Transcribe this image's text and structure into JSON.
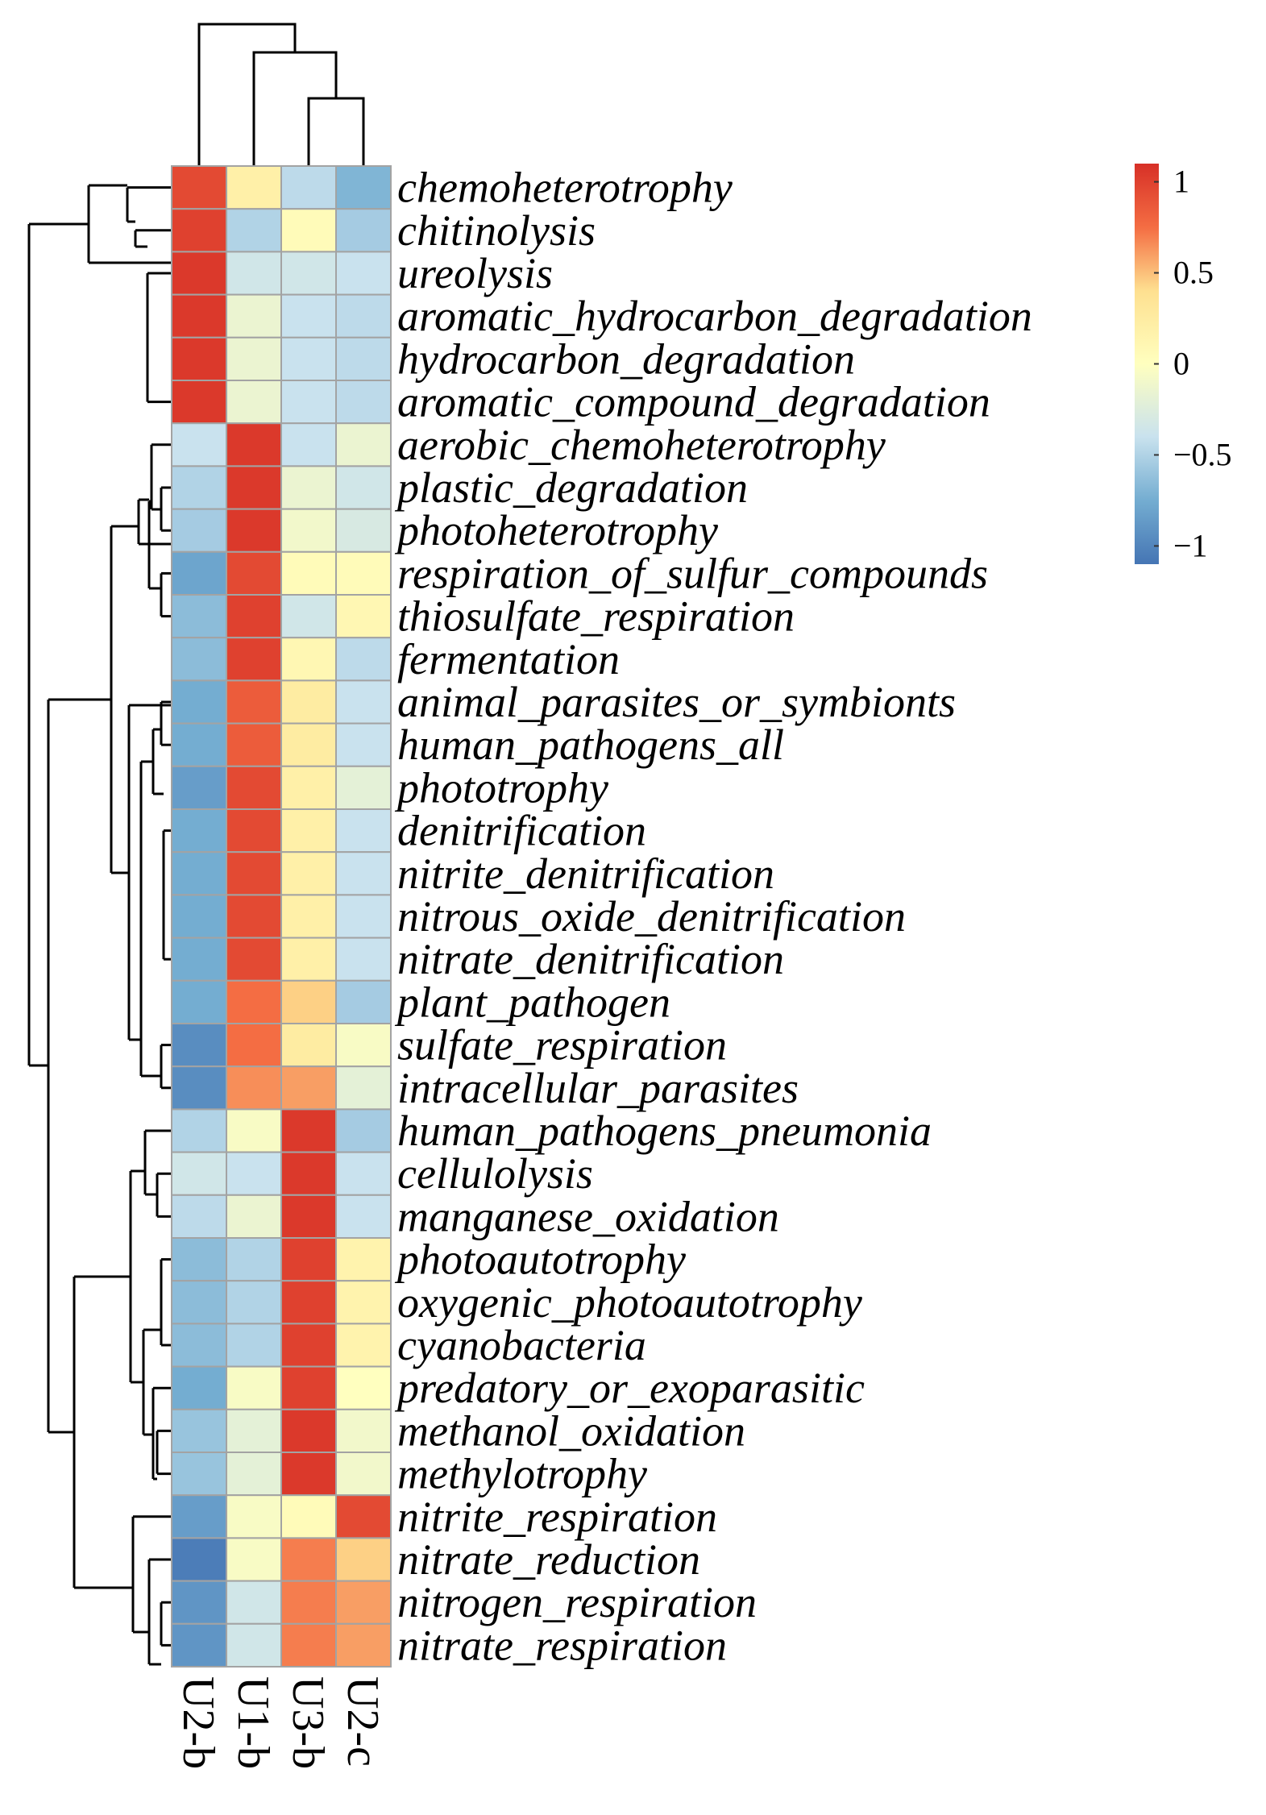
{
  "chart_data": {
    "type": "heatmap",
    "title": "",
    "columns": [
      "U2-b",
      "U1-b",
      "U3-b",
      "U2-c"
    ],
    "rows": [
      {
        "label": "chemoheterotrophy",
        "values": [
          0.95,
          0.2,
          -0.45,
          -0.7
        ]
      },
      {
        "label": "chitinolysis",
        "values": [
          1.0,
          -0.5,
          0.05,
          -0.55
        ]
      },
      {
        "label": "ureolysis",
        "values": [
          1.05,
          -0.35,
          -0.35,
          -0.4
        ]
      },
      {
        "label": "aromatic_hydrocarbon_degradation",
        "values": [
          1.05,
          -0.15,
          -0.4,
          -0.45
        ]
      },
      {
        "label": "hydrocarbon_degradation",
        "values": [
          1.05,
          -0.15,
          -0.4,
          -0.45
        ]
      },
      {
        "label": "aromatic_compound_degradation",
        "values": [
          1.05,
          -0.15,
          -0.4,
          -0.45
        ]
      },
      {
        "label": "aerobic_chemoheterotrophy",
        "values": [
          -0.4,
          1.05,
          -0.4,
          -0.15
        ]
      },
      {
        "label": "plastic_degradation",
        "values": [
          -0.5,
          1.05,
          -0.15,
          -0.35
        ]
      },
      {
        "label": "photoheterotrophy",
        "values": [
          -0.55,
          1.05,
          -0.1,
          -0.3
        ]
      },
      {
        "label": "respiration_of_sulfur_compounds",
        "values": [
          -0.8,
          0.95,
          0.05,
          0.05
        ]
      },
      {
        "label": "thiosulfate_respiration",
        "values": [
          -0.65,
          1.0,
          -0.35,
          0.1
        ]
      },
      {
        "label": "fermentation",
        "values": [
          -0.65,
          1.0,
          0.1,
          -0.45
        ]
      },
      {
        "label": "animal_parasites_or_symbionts",
        "values": [
          -0.75,
          0.85,
          0.25,
          -0.4
        ]
      },
      {
        "label": "human_pathogens_all",
        "values": [
          -0.75,
          0.85,
          0.25,
          -0.4
        ]
      },
      {
        "label": "phototrophy",
        "values": [
          -0.85,
          0.95,
          0.2,
          -0.2
        ]
      },
      {
        "label": "denitrification",
        "values": [
          -0.75,
          0.95,
          0.2,
          -0.4
        ]
      },
      {
        "label": "nitrite_denitrification",
        "values": [
          -0.75,
          0.95,
          0.2,
          -0.4
        ]
      },
      {
        "label": "nitrous_oxide_denitrification",
        "values": [
          -0.75,
          0.95,
          0.2,
          -0.4
        ]
      },
      {
        "label": "nitrate_denitrification",
        "values": [
          -0.75,
          0.95,
          0.2,
          -0.4
        ]
      },
      {
        "label": "plant_pathogen",
        "values": [
          -0.75,
          0.75,
          0.45,
          -0.55
        ]
      },
      {
        "label": "sulfate_respiration",
        "values": [
          -0.95,
          0.75,
          0.25,
          -0.05
        ]
      },
      {
        "label": "intracellular_parasites",
        "values": [
          -0.95,
          0.65,
          0.6,
          -0.2
        ]
      },
      {
        "label": "human_pathogens_pneumonia",
        "values": [
          -0.5,
          -0.05,
          1.05,
          -0.55
        ]
      },
      {
        "label": "cellulolysis",
        "values": [
          -0.35,
          -0.4,
          1.05,
          -0.4
        ]
      },
      {
        "label": "manganese_oxidation",
        "values": [
          -0.45,
          -0.15,
          1.05,
          -0.4
        ]
      },
      {
        "label": "photoautotrophy",
        "values": [
          -0.65,
          -0.5,
          1.0,
          0.15
        ]
      },
      {
        "label": "oxygenic_photoautotrophy",
        "values": [
          -0.65,
          -0.5,
          1.0,
          0.15
        ]
      },
      {
        "label": "cyanobacteria",
        "values": [
          -0.65,
          -0.5,
          1.0,
          0.15
        ]
      },
      {
        "label": "predatory_or_exoparasitic",
        "values": [
          -0.75,
          -0.05,
          1.0,
          0.0
        ]
      },
      {
        "label": "methanol_oxidation",
        "values": [
          -0.6,
          -0.2,
          1.05,
          -0.1
        ]
      },
      {
        "label": "methylotrophy",
        "values": [
          -0.6,
          -0.2,
          1.05,
          -0.1
        ]
      },
      {
        "label": "nitrite_respiration",
        "values": [
          -0.85,
          -0.05,
          0.05,
          0.95
        ]
      },
      {
        "label": "nitrate_reduction",
        "values": [
          -1.05,
          -0.05,
          0.7,
          0.45
        ]
      },
      {
        "label": "nitrogen_respiration",
        "values": [
          -0.9,
          -0.35,
          0.7,
          0.6
        ]
      },
      {
        "label": "nitrate_respiration",
        "values": [
          -0.9,
          -0.35,
          0.7,
          0.6
        ]
      }
    ],
    "legend": {
      "min": -1.1,
      "max": 1.1,
      "ticks": [
        {
          "value": 1,
          "label": "1"
        },
        {
          "value": 0.5,
          "label": "0.5"
        },
        {
          "value": 0,
          "label": "0"
        },
        {
          "value": -0.5,
          "label": "−0.5"
        },
        {
          "value": -1,
          "label": "−1"
        }
      ],
      "placement": "top-right"
    },
    "color_scale": {
      "stops": [
        {
          "value": -1.1,
          "color": "#4575b4"
        },
        {
          "value": -0.75,
          "color": "#74add1"
        },
        {
          "value": -0.4,
          "color": "#c9e2ee"
        },
        {
          "value": 0,
          "color": "#ffffbf"
        },
        {
          "value": 0.4,
          "color": "#fee090"
        },
        {
          "value": 0.75,
          "color": "#f46d43"
        },
        {
          "value": 1.1,
          "color": "#d73027"
        }
      ]
    },
    "cell_border_color": "#a3a3a3",
    "column_dendrogram": "U2-b joins (U1-b, (U3-b, U2-c))",
    "row_dendrogram_groups": [
      [
        "chemoheterotrophy",
        "chitinolysis",
        "ureolysis",
        "aromatic_hydrocarbon_degradation",
        "hydrocarbon_degradation",
        "aromatic_compound_degradation"
      ],
      [
        "aerobic_chemoheterotrophy",
        "plastic_degradation",
        "photoheterotrophy",
        "respiration_of_sulfur_compounds",
        "thiosulfate_respiration",
        "fermentation",
        "animal_parasites_or_symbionts",
        "human_pathogens_all",
        "phototrophy",
        "denitrification",
        "nitrite_denitrification",
        "nitrous_oxide_denitrification",
        "nitrate_denitrification",
        "plant_pathogen",
        "sulfate_respiration",
        "intracellular_parasites"
      ],
      [
        "human_pathogens_pneumonia",
        "cellulolysis",
        "manganese_oxidation",
        "photoautotrophy",
        "oxygenic_photoautotrophy",
        "cyanobacteria",
        "predatory_or_exoparasitic",
        "methanol_oxidation",
        "methylotrophy"
      ],
      [
        "nitrite_respiration",
        "nitrate_reduction",
        "nitrogen_respiration",
        "nitrate_respiration"
      ]
    ]
  }
}
